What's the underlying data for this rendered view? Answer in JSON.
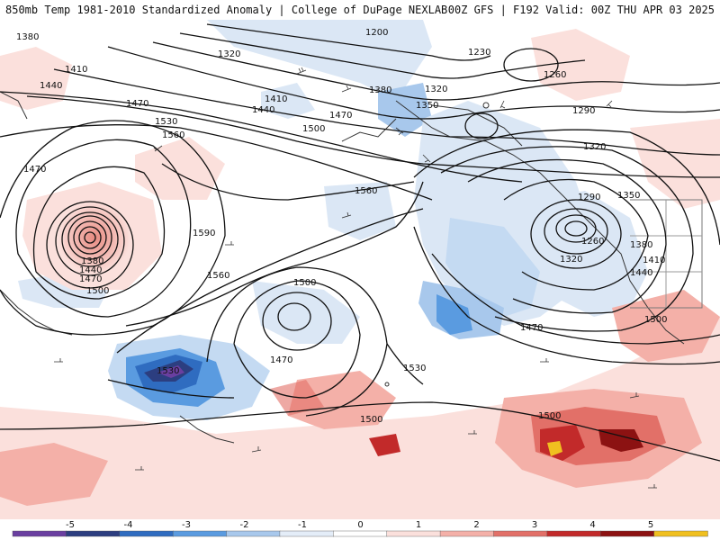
{
  "header": {
    "title_left": "850mb Temp 1981-2010 Standardized Anomaly | College of DuPage NEXLAB",
    "title_right": "00Z GFS | F192 Valid: 00Z THU APR 03 2025"
  },
  "contour_labels": [
    "1200",
    "1230",
    "1260",
    "1290",
    "1320",
    "1350",
    "1380",
    "1410",
    "1440",
    "1470",
    "1500",
    "1530",
    "1560",
    "1590"
  ],
  "map_labels": {
    "h1380_nw": "1380",
    "h1410_nw": "1410",
    "h1440_nw": "1440",
    "h1470_w": "1470",
    "h1470_nw": "1470",
    "h1530_low": "1530",
    "h1560_low": "1560",
    "h1320_top": "1320",
    "h1200": "1200",
    "h1230": "1230",
    "h1260_ne": "1260",
    "h1290_ne": "1290",
    "h1320_ne": "1320",
    "h1380_ak": "1380",
    "h1320_ak": "1320",
    "h1350_ak": "1350",
    "h1410_mid": "1410",
    "h1440_mid": "1440",
    "h1470_mid": "1470",
    "h1500_mid": "1500",
    "h1560_center": "1560",
    "h1590": "1590",
    "h1380_wlow": "1380",
    "h1440_wlow": "1440",
    "h1470_wlow": "1470",
    "h1500_wlow": "1500",
    "h1560_sw": "1560",
    "h1500_c": "1500",
    "h1470_c": "1470",
    "h1530_c": "1530",
    "h1530_sw": "1530",
    "h1290_e": "1290",
    "h1350_e": "1350",
    "h1260_e": "1260",
    "h1320_e": "1320",
    "h1380_e": "1380",
    "h1410_e": "1410",
    "h1440_e": "1440",
    "h1470_e": "1470",
    "h1500_e": "1500",
    "h1500_s1": "1500",
    "h1500_s2": "1500"
  },
  "colorbar": {
    "ticks": [
      "-5",
      "-4",
      "-3",
      "-2",
      "-1",
      "0",
      "1",
      "2",
      "3",
      "4",
      "5"
    ],
    "colors": [
      "#6a3fa0",
      "#2c3e80",
      "#2f6cc0",
      "#5a9be0",
      "#a8c8ec",
      "#e4edf8",
      "#ffffff",
      "#fbe0dc",
      "#f4b0a8",
      "#e27068",
      "#c22a2a",
      "#8c1212",
      "#f0c020"
    ]
  }
}
